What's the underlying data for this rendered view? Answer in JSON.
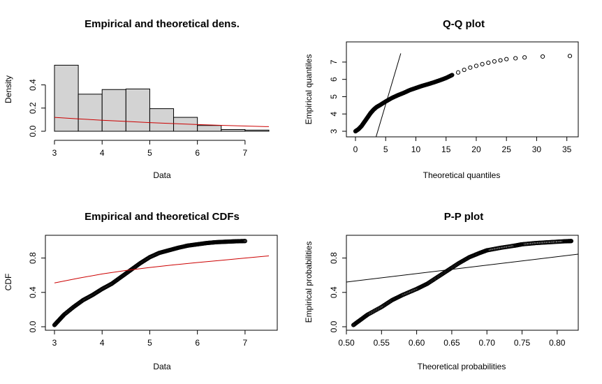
{
  "chart_data": [
    {
      "id": "density",
      "type": "bar",
      "title": "Empirical and theoretical dens.",
      "xlabel": "Data",
      "ylabel": "Density",
      "xlim": [
        3,
        7.5
      ],
      "ylim": [
        0,
        0.5
      ],
      "xticks": [
        "3",
        "4",
        "5",
        "6",
        "7"
      ],
      "yticks": [
        "0.0",
        "0.2",
        "0.4"
      ],
      "bins": [
        {
          "x0": 3.0,
          "x1": 3.5,
          "value": 0.57
        },
        {
          "x0": 3.5,
          "x1": 4.0,
          "value": 0.32
        },
        {
          "x0": 4.0,
          "x1": 4.5,
          "value": 0.36
        },
        {
          "x0": 4.5,
          "x1": 5.0,
          "value": 0.365
        },
        {
          "x0": 5.0,
          "x1": 5.5,
          "value": 0.195
        },
        {
          "x0": 5.5,
          "x1": 6.0,
          "value": 0.12
        },
        {
          "x0": 6.0,
          "x1": 6.5,
          "value": 0.05
        },
        {
          "x0": 6.5,
          "x1": 7.0,
          "value": 0.015
        },
        {
          "x0": 7.0,
          "x1": 7.5,
          "value": 0.01
        }
      ],
      "theoretical_curve": {
        "color": "#cc0000",
        "x": [
          3.0,
          3.5,
          4.0,
          4.5,
          5.0,
          5.5,
          6.0,
          6.5,
          7.0,
          7.5
        ],
        "y": [
          0.12,
          0.107,
          0.095,
          0.085,
          0.075,
          0.066,
          0.058,
          0.051,
          0.045,
          0.04
        ]
      },
      "bar_color": "#d3d3d3"
    },
    {
      "id": "qq",
      "type": "scatter",
      "title": "Q-Q plot",
      "xlabel": "Theoretical quantiles",
      "ylabel": "Empirical quantiles",
      "xlim": [
        0,
        35.5
      ],
      "ylim": [
        3,
        7.4
      ],
      "xticks": [
        "0",
        "5",
        "10",
        "15",
        "20",
        "25",
        "30",
        "35"
      ],
      "yticks": [
        "3",
        "4",
        "5",
        "6",
        "7"
      ],
      "points_x": [
        0,
        0.5,
        1,
        1.5,
        2,
        2.5,
        3,
        3.5,
        4,
        5,
        6,
        7,
        8,
        9,
        10,
        11,
        12,
        13,
        14,
        15,
        16,
        17,
        18,
        19,
        20,
        21,
        22,
        23,
        24,
        25,
        26.5,
        28,
        31,
        35.5
      ],
      "points_y": [
        3.0,
        3.12,
        3.3,
        3.55,
        3.8,
        4.05,
        4.25,
        4.4,
        4.5,
        4.72,
        4.92,
        5.08,
        5.22,
        5.38,
        5.5,
        5.62,
        5.72,
        5.83,
        5.95,
        6.08,
        6.25,
        6.4,
        6.55,
        6.68,
        6.78,
        6.88,
        6.96,
        7.04,
        7.1,
        7.17,
        7.22,
        7.27,
        7.32,
        7.35
      ],
      "line": {
        "x": [
          3,
          7.5
        ],
        "y": [
          3,
          7.5
        ]
      }
    },
    {
      "id": "cdf",
      "type": "line",
      "title": "Empirical and theoretical CDFs",
      "xlabel": "Data",
      "ylabel": "CDF",
      "xlim": [
        3,
        7.5
      ],
      "ylim": [
        0,
        1
      ],
      "xticks": [
        "3",
        "4",
        "5",
        "6",
        "7"
      ],
      "yticks": [
        "0.0",
        "0.4",
        "0.8"
      ],
      "empirical": {
        "x": [
          3.0,
          3.1,
          3.2,
          3.4,
          3.6,
          3.8,
          4.0,
          4.2,
          4.4,
          4.6,
          4.8,
          5.0,
          5.2,
          5.4,
          5.6,
          5.8,
          6.0,
          6.2,
          6.4,
          6.6,
          6.8,
          7.0
        ],
        "y": [
          0.02,
          0.08,
          0.14,
          0.23,
          0.31,
          0.37,
          0.44,
          0.5,
          0.58,
          0.66,
          0.74,
          0.81,
          0.86,
          0.89,
          0.92,
          0.945,
          0.96,
          0.975,
          0.985,
          0.99,
          0.995,
          0.998
        ]
      },
      "theoretical": {
        "color": "#cc0000",
        "x": [
          3.0,
          3.5,
          4.0,
          4.5,
          5.0,
          5.5,
          6.0,
          6.5,
          7.0,
          7.5
        ],
        "y": [
          0.51,
          0.565,
          0.615,
          0.655,
          0.69,
          0.72,
          0.748,
          0.773,
          0.8,
          0.825
        ]
      }
    },
    {
      "id": "pp",
      "type": "scatter",
      "title": "P-P plot",
      "xlabel": "Theoretical probabilities",
      "ylabel": "Empirical probabilities",
      "xlim": [
        0.5,
        0.83
      ],
      "ylim": [
        0,
        1
      ],
      "xticks": [
        "0.50",
        "0.55",
        "0.60",
        "0.65",
        "0.70",
        "0.75",
        "0.80"
      ],
      "yticks": [
        "0.0",
        "0.4",
        "0.8"
      ],
      "points_x": [
        0.51,
        0.52,
        0.53,
        0.55,
        0.565,
        0.58,
        0.6,
        0.615,
        0.63,
        0.645,
        0.66,
        0.675,
        0.69,
        0.7,
        0.72,
        0.74,
        0.75,
        0.77,
        0.79,
        0.81,
        0.82
      ],
      "points_y": [
        0.02,
        0.08,
        0.14,
        0.23,
        0.31,
        0.37,
        0.44,
        0.5,
        0.58,
        0.66,
        0.74,
        0.81,
        0.86,
        0.89,
        0.92,
        0.945,
        0.96,
        0.975,
        0.985,
        0.995,
        0.998
      ],
      "line": {
        "x": [
          0.5,
          0.83
        ],
        "y": [
          0.5,
          0.83
        ]
      }
    }
  ]
}
